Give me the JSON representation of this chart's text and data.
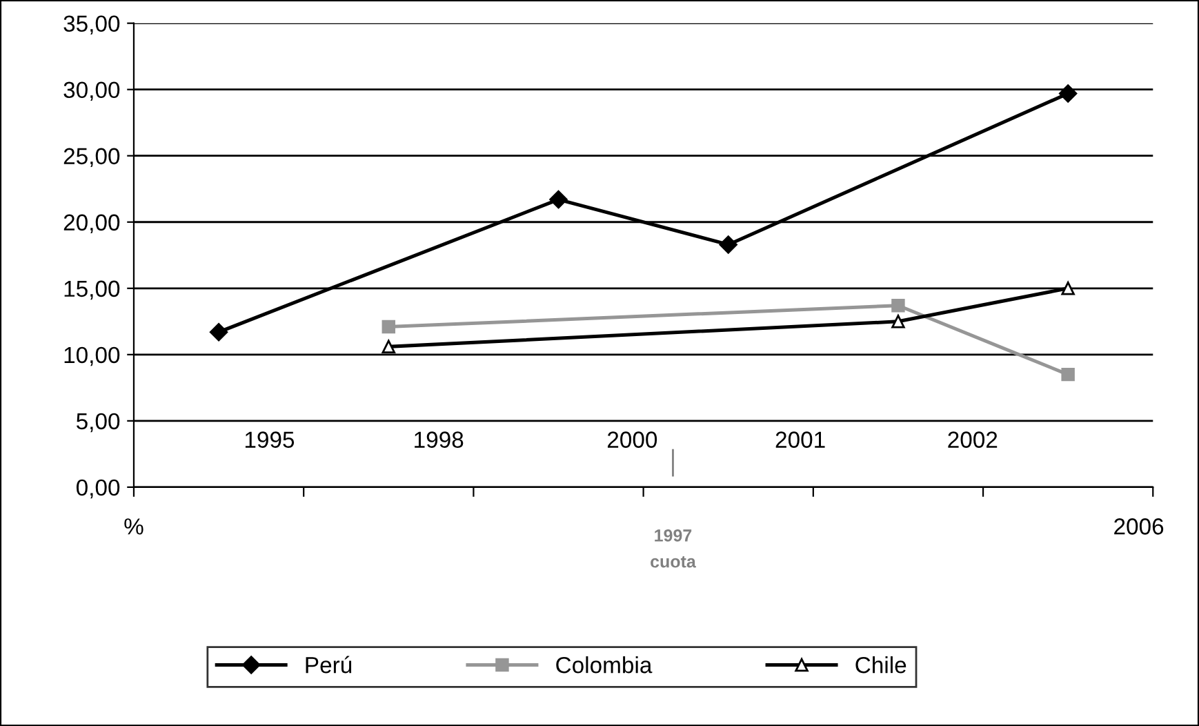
{
  "chart_data": {
    "type": "line",
    "categories": [
      null,
      null,
      null,
      null,
      null,
      null
    ],
    "series": [
      {
        "name": "Perú",
        "color": "#000000",
        "marker": "diamond",
        "values": [
          11.7,
          null,
          21.7,
          18.3,
          null,
          29.7
        ]
      },
      {
        "name": "Colombia",
        "color": "#969696",
        "marker": "square",
        "values": [
          null,
          12.1,
          null,
          null,
          13.7,
          8.5
        ]
      },
      {
        "name": "Chile",
        "color": "#000000",
        "marker": "triangle",
        "values": [
          null,
          10.6,
          null,
          null,
          12.5,
          15.0
        ]
      }
    ],
    "ylim": [
      0,
      35
    ],
    "yticks": [
      {
        "value": 0,
        "label": "0,00"
      },
      {
        "value": 5,
        "label": "5,00"
      },
      {
        "value": 10,
        "label": "10,00"
      },
      {
        "value": 15,
        "label": "15,00"
      },
      {
        "value": 20,
        "label": "20,00"
      },
      {
        "value": 25,
        "label": "25,00"
      },
      {
        "value": 30,
        "label": "30,00"
      },
      {
        "value": 35,
        "label": "35,00"
      }
    ],
    "grid": "y",
    "legend": "bottom",
    "annotations": [
      "1995",
      "1998",
      "2000",
      "2001",
      "2002",
      "%",
      "2006",
      "1997\ncuota"
    ]
  }
}
